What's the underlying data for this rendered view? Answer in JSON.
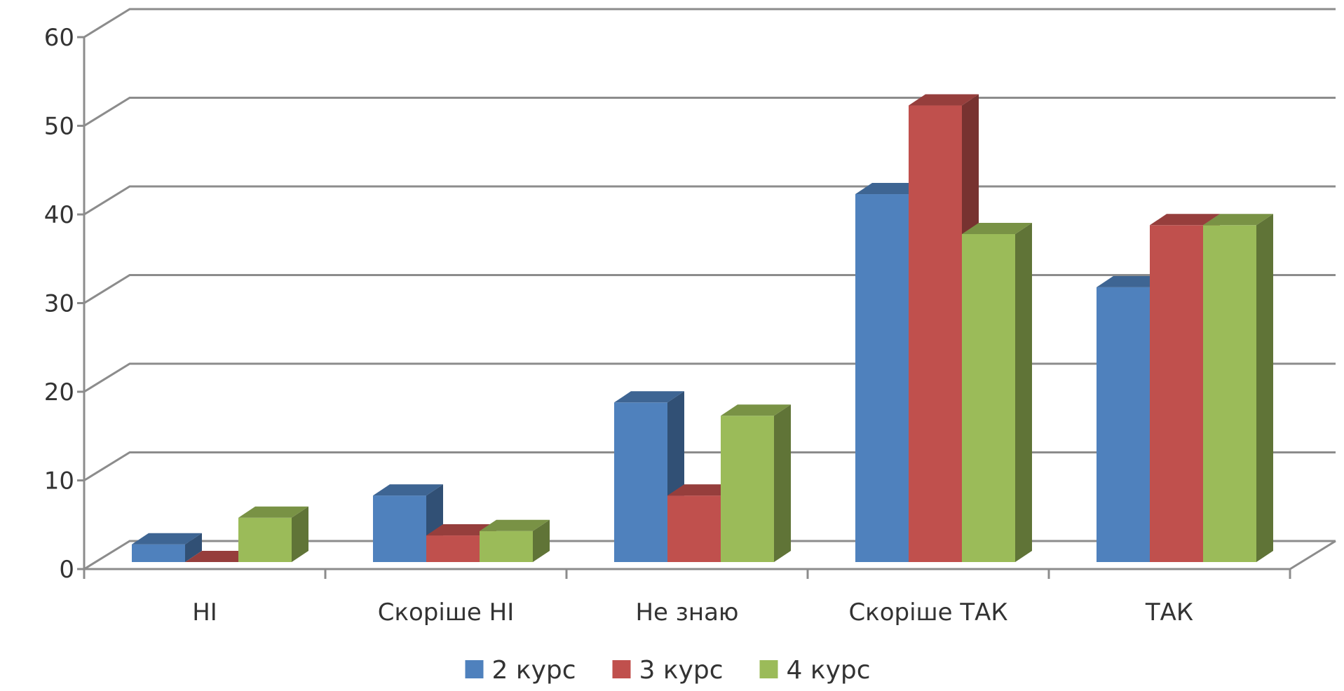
{
  "chart_data": {
    "type": "bar",
    "title": "",
    "xlabel": "",
    "ylabel": "",
    "categories": [
      "НІ",
      "Скоріше НІ",
      "Не знаю",
      "Скоріше ТАК",
      "ТАК"
    ],
    "series": [
      {
        "name": "2 курс",
        "values": [
          2,
          7.5,
          18,
          41.5,
          31
        ],
        "color": "#4F81BD"
      },
      {
        "name": "3 курс",
        "values": [
          0,
          3,
          7.5,
          51.5,
          38
        ],
        "color": "#C0504D"
      },
      {
        "name": "4 курс",
        "values": [
          5,
          3.5,
          16.5,
          37,
          38
        ],
        "color": "#9BBB59"
      }
    ],
    "ylim": [
      0,
      60
    ],
    "yticks": [
      "0",
      "10",
      "20",
      "30",
      "40",
      "50",
      "60"
    ],
    "grid": true,
    "legend_position": "bottom",
    "style": "3d-clustered-column"
  }
}
